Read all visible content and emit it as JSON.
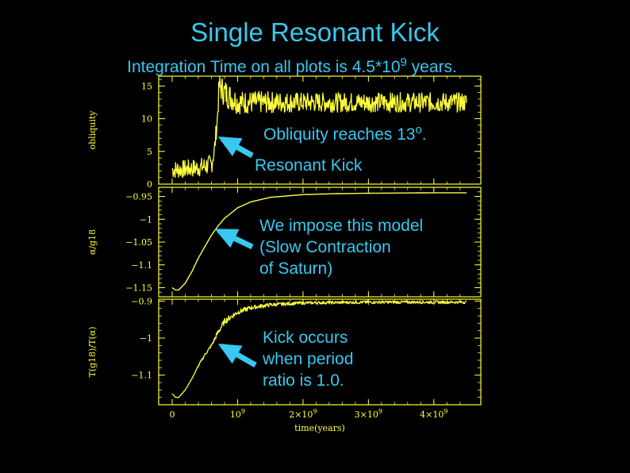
{
  "title": "Single Resonant Kick",
  "subtitle": {
    "text": "Integration Time on all plots is 4.5*10",
    "exponent": "9",
    "suffix": " years."
  },
  "colors": {
    "text": "#38c8f0",
    "plot": "#ffff3c",
    "background": "#000000"
  },
  "annotations": {
    "obliquity": {
      "text": "Obliquity reaches 13",
      "sup": "o",
      "suffix": "."
    },
    "resonant_kick": "Resonant Kick",
    "model": [
      "We impose this model",
      "(Slow Contraction",
      "of Saturn)"
    ],
    "kick": [
      "Kick occurs",
      "when period",
      "ratio is 1.0."
    ]
  },
  "chart_data": [
    {
      "type": "line",
      "ylabel": "obliquity",
      "xlim": [
        0,
        4500000000.0
      ],
      "ylim": [
        0,
        16.5
      ],
      "yticks": [
        0,
        5,
        10,
        15
      ],
      "ytick_labels": [
        "0",
        "5",
        "10",
        "15"
      ],
      "series": [
        {
          "x": [
            0,
            200000000.0,
            400000000.0,
            600000000.0,
            650000000.0,
            690000000.0,
            720000000.0,
            800000000.0,
            1000000000.0,
            2000000000.0,
            3000000000.0,
            4000000000.0,
            4500000000.0
          ],
          "y": [
            2.2,
            2.3,
            2.5,
            3.0,
            5.5,
            10,
            15,
            14,
            12.5,
            12.5,
            12.5,
            12.5,
            12.5
          ],
          "noise": [
            1.4,
            1.4,
            1.4,
            1.6,
            1.5,
            1.5,
            2,
            2.2,
            1.8,
            1.5,
            1.5,
            1.5,
            1.5
          ]
        }
      ]
    },
    {
      "type": "line",
      "ylabel": "α/g18",
      "xlim": [
        0,
        4500000000.0
      ],
      "ylim": [
        -1.17,
        -0.93
      ],
      "yticks": [
        -1.15,
        -1.1,
        -1.05,
        -1,
        -0.95
      ],
      "ytick_labels": [
        "−1.15",
        "−1.1",
        "−1.05",
        "−1",
        "−0.95"
      ],
      "series": [
        {
          "x": [
            0,
            50000000.0,
            100000000.0,
            200000000.0,
            300000000.0,
            400000000.0,
            500000000.0,
            600000000.0,
            700000000.0,
            800000000.0,
            1000000000.0,
            1200000000.0,
            1500000000.0,
            2000000000.0,
            2500000000.0,
            3000000000.0,
            3500000000.0,
            4000000000.0,
            4500000000.0
          ],
          "y": [
            -1.15,
            -1.155,
            -1.155,
            -1.14,
            -1.115,
            -1.085,
            -1.06,
            -1.035,
            -1.015,
            -0.998,
            -0.975,
            -0.962,
            -0.952,
            -0.946,
            -0.944,
            -0.943,
            -0.9425,
            -0.942,
            -0.942
          ]
        }
      ]
    },
    {
      "type": "line",
      "ylabel": "T(g18)/T(α)",
      "xlabel": "time(years)",
      "xlim": [
        0,
        4500000000.0
      ],
      "ylim": [
        -1.18,
        -0.895
      ],
      "yticks": [
        -1.1,
        -1,
        -0.9
      ],
      "ytick_labels": [
        "−1.1",
        "−1",
        "−0.9"
      ],
      "xticks": [
        0,
        1000000000.0,
        2000000000.0,
        3000000000.0,
        4000000000.0
      ],
      "xtick_labels": [
        {
          "base": "0",
          "exp": ""
        },
        {
          "base": "10",
          "exp": "9"
        },
        {
          "base": "2×10",
          "exp": "9"
        },
        {
          "base": "3×10",
          "exp": "9"
        },
        {
          "base": "4×10",
          "exp": "9"
        }
      ],
      "series": [
        {
          "x": [
            0,
            50000000.0,
            100000000.0,
            200000000.0,
            300000000.0,
            400000000.0,
            500000000.0,
            600000000.0,
            700000000.0,
            800000000.0,
            1000000000.0,
            1200000000.0,
            1500000000.0,
            2000000000.0,
            2500000000.0,
            3000000000.0,
            3500000000.0,
            4000000000.0,
            4500000000.0
          ],
          "y": [
            -1.15,
            -1.16,
            -1.16,
            -1.14,
            -1.11,
            -1.075,
            -1.045,
            -1.02,
            -0.985,
            -0.955,
            -0.93,
            -0.918,
            -0.91,
            -0.905,
            -0.904,
            -0.903,
            -0.903,
            -0.903,
            -0.903
          ],
          "noise": [
            0,
            0,
            0,
            0,
            0,
            0.003,
            0.003,
            0.004,
            0.008,
            0.008,
            0.007,
            0.006,
            0.005,
            0.004,
            0.004,
            0.004,
            0.004,
            0.004,
            0.004
          ]
        }
      ]
    }
  ]
}
